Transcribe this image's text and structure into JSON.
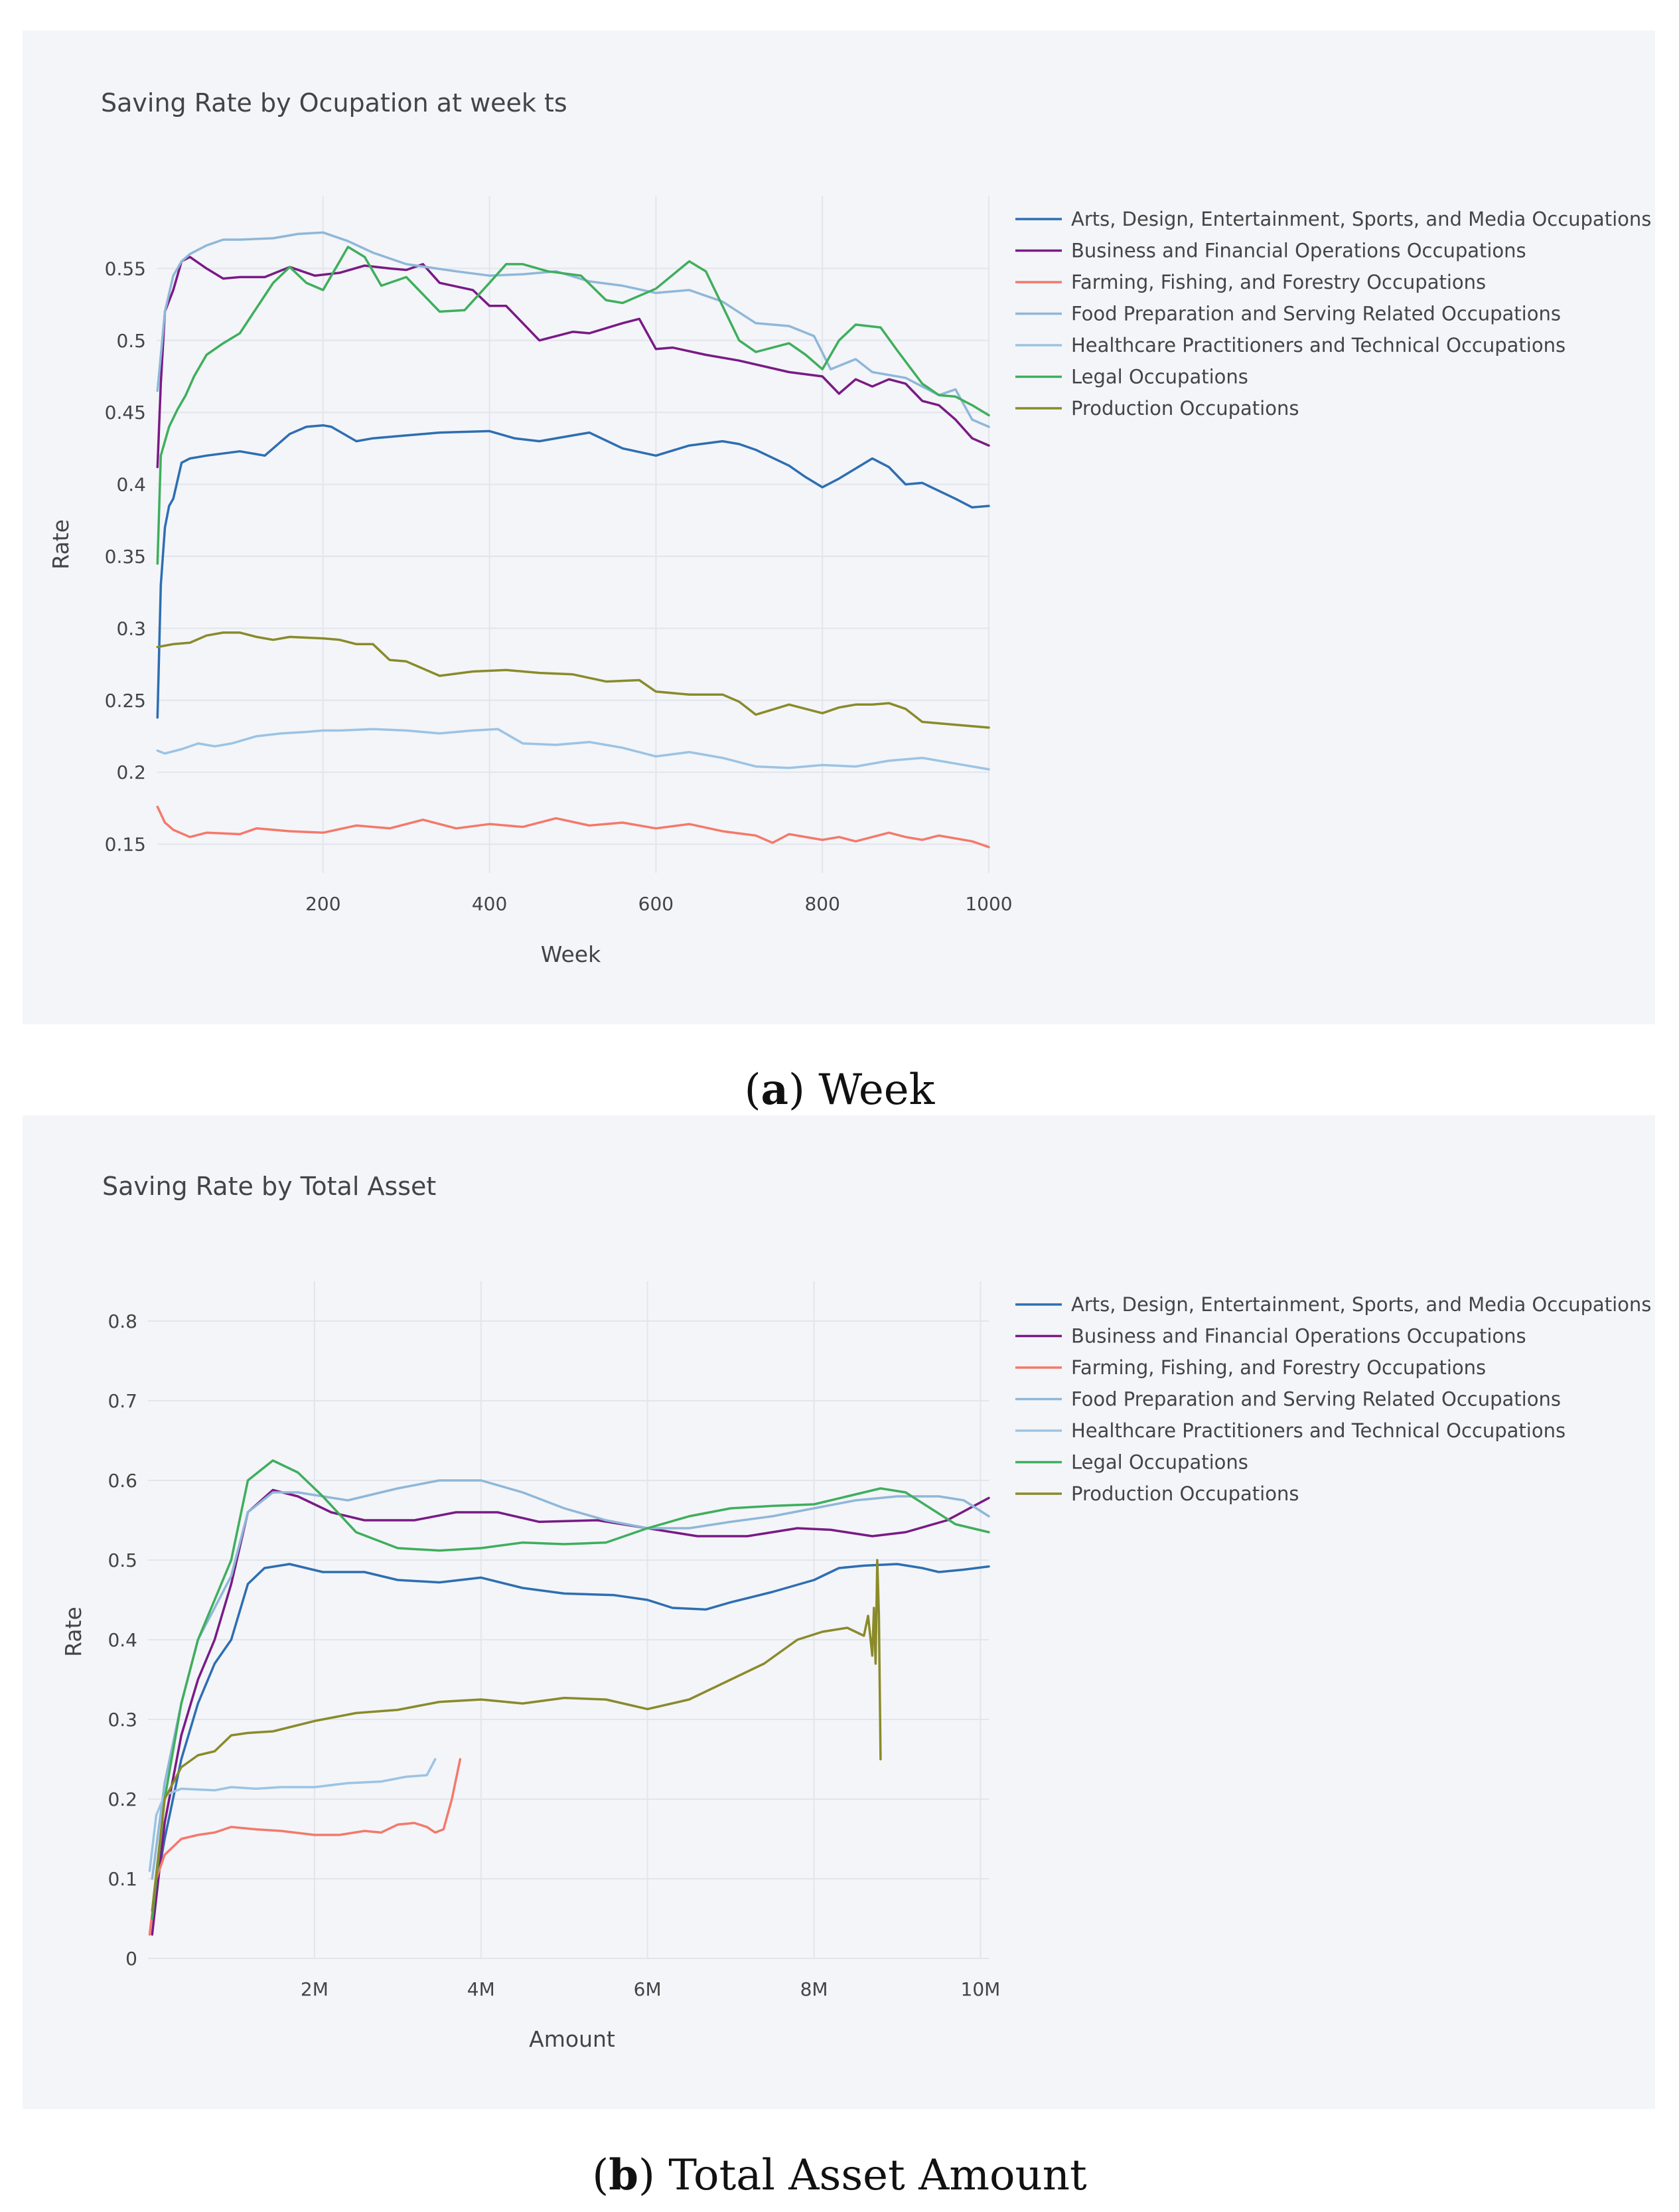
{
  "chart_data": [
    {
      "type": "line",
      "title": "Saving Rate by Ocupation at week ts",
      "xlabel": "Week",
      "ylabel": "Rate",
      "xlim": [
        0,
        1000
      ],
      "ylim": [
        0.13,
        0.6
      ],
      "xticks": [
        200,
        400,
        600,
        800,
        1000
      ],
      "xtick_labels": [
        "200",
        "400",
        "600",
        "800",
        "1000"
      ],
      "yticks": [
        0.15,
        0.2,
        0.25,
        0.3,
        0.35,
        0.4,
        0.45,
        0.5,
        0.55
      ],
      "ytick_labels": [
        "0.15",
        "0.2",
        "0.25",
        "0.3",
        "0.35",
        "0.4",
        "0.45",
        "0.5",
        "0.55"
      ],
      "legend_position": "right",
      "series": [
        {
          "name": "Arts, Design, Entertainment, Sports, and Media Occupations",
          "color": "#2e6eb1",
          "x": [
            1,
            5,
            10,
            15,
            20,
            30,
            40,
            60,
            100,
            130,
            160,
            180,
            200,
            210,
            240,
            260,
            300,
            340,
            400,
            430,
            460,
            500,
            520,
            560,
            600,
            640,
            680,
            700,
            720,
            760,
            780,
            800,
            820,
            860,
            880,
            900,
            920,
            960,
            980,
            1000
          ],
          "y": [
            0.238,
            0.33,
            0.37,
            0.385,
            0.39,
            0.415,
            0.418,
            0.42,
            0.423,
            0.42,
            0.435,
            0.44,
            0.441,
            0.44,
            0.43,
            0.432,
            0.434,
            0.436,
            0.437,
            0.432,
            0.43,
            0.434,
            0.436,
            0.425,
            0.42,
            0.427,
            0.43,
            0.428,
            0.424,
            0.413,
            0.405,
            0.398,
            0.404,
            0.418,
            0.412,
            0.4,
            0.401,
            0.39,
            0.384,
            0.385
          ]
        },
        {
          "name": "Business and Financial Operations Occupations",
          "color": "#7a1a85",
          "x": [
            1,
            5,
            10,
            20,
            30,
            40,
            60,
            80,
            100,
            130,
            160,
            190,
            220,
            250,
            280,
            300,
            320,
            340,
            380,
            400,
            420,
            440,
            460,
            500,
            520,
            560,
            580,
            600,
            620,
            660,
            700,
            760,
            800,
            820,
            840,
            860,
            880,
            900,
            920,
            940,
            960,
            980,
            1000
          ],
          "y": [
            0.412,
            0.47,
            0.52,
            0.535,
            0.555,
            0.558,
            0.55,
            0.543,
            0.544,
            0.544,
            0.551,
            0.545,
            0.547,
            0.552,
            0.55,
            0.549,
            0.553,
            0.54,
            0.535,
            0.524,
            0.524,
            0.512,
            0.5,
            0.506,
            0.505,
            0.512,
            0.515,
            0.494,
            0.495,
            0.49,
            0.486,
            0.478,
            0.475,
            0.463,
            0.473,
            0.468,
            0.473,
            0.47,
            0.458,
            0.455,
            0.445,
            0.432,
            0.427
          ]
        },
        {
          "name": "Farming, Fishing, and Forestry Occupations",
          "color": "#f4796a",
          "x": [
            1,
            10,
            20,
            40,
            60,
            100,
            120,
            160,
            200,
            240,
            280,
            320,
            360,
            400,
            440,
            480,
            520,
            560,
            600,
            640,
            680,
            720,
            740,
            760,
            800,
            820,
            840,
            880,
            900,
            920,
            940,
            980,
            1000
          ],
          "y": [
            0.176,
            0.165,
            0.16,
            0.155,
            0.158,
            0.157,
            0.161,
            0.159,
            0.158,
            0.163,
            0.161,
            0.167,
            0.161,
            0.164,
            0.162,
            0.168,
            0.163,
            0.165,
            0.161,
            0.164,
            0.159,
            0.156,
            0.151,
            0.157,
            0.153,
            0.155,
            0.152,
            0.158,
            0.155,
            0.153,
            0.156,
            0.152,
            0.148
          ]
        },
        {
          "name": "Food Preparation and Serving Related Occupations",
          "color": "#8fb7d8",
          "x": [
            1,
            10,
            20,
            30,
            40,
            60,
            80,
            100,
            140,
            170,
            200,
            230,
            260,
            300,
            360,
            400,
            440,
            480,
            520,
            560,
            600,
            640,
            680,
            720,
            760,
            790,
            810,
            840,
            860,
            900,
            940,
            960,
            980,
            1000
          ],
          "y": [
            0.465,
            0.52,
            0.545,
            0.555,
            0.56,
            0.566,
            0.57,
            0.57,
            0.571,
            0.574,
            0.575,
            0.569,
            0.561,
            0.553,
            0.548,
            0.545,
            0.546,
            0.548,
            0.541,
            0.538,
            0.533,
            0.535,
            0.527,
            0.512,
            0.51,
            0.503,
            0.48,
            0.487,
            0.478,
            0.474,
            0.462,
            0.466,
            0.445,
            0.44
          ]
        },
        {
          "name": "Healthcare Practitioners and Technical Occupations",
          "color": "#9cc3e3",
          "x": [
            1,
            10,
            30,
            50,
            70,
            90,
            120,
            150,
            180,
            200,
            220,
            260,
            300,
            340,
            380,
            410,
            440,
            480,
            520,
            560,
            600,
            640,
            680,
            720,
            760,
            800,
            840,
            880,
            920,
            960,
            1000
          ],
          "y": [
            0.215,
            0.213,
            0.216,
            0.22,
            0.218,
            0.22,
            0.225,
            0.227,
            0.228,
            0.229,
            0.229,
            0.23,
            0.229,
            0.227,
            0.229,
            0.23,
            0.22,
            0.219,
            0.221,
            0.217,
            0.211,
            0.214,
            0.21,
            0.204,
            0.203,
            0.205,
            0.204,
            0.208,
            0.21,
            0.206,
            0.202
          ]
        },
        {
          "name": "Legal Occupations",
          "color": "#3fae5c",
          "x": [
            1,
            5,
            15,
            25,
            35,
            45,
            60,
            80,
            100,
            140,
            160,
            180,
            200,
            230,
            250,
            270,
            300,
            340,
            370,
            400,
            420,
            440,
            470,
            510,
            540,
            560,
            600,
            640,
            660,
            700,
            720,
            760,
            780,
            800,
            820,
            840,
            870,
            890,
            920,
            940,
            960,
            980,
            1000
          ],
          "y": [
            0.345,
            0.42,
            0.44,
            0.452,
            0.462,
            0.475,
            0.49,
            0.498,
            0.505,
            0.54,
            0.551,
            0.54,
            0.535,
            0.565,
            0.558,
            0.538,
            0.544,
            0.52,
            0.521,
            0.54,
            0.553,
            0.553,
            0.548,
            0.545,
            0.528,
            0.526,
            0.536,
            0.555,
            0.548,
            0.5,
            0.492,
            0.498,
            0.49,
            0.48,
            0.5,
            0.511,
            0.509,
            0.493,
            0.47,
            0.462,
            0.461,
            0.455,
            0.448
          ]
        },
        {
          "name": "Production Occupations",
          "color": "#8a8a2a",
          "x": [
            1,
            20,
            40,
            60,
            80,
            100,
            120,
            140,
            160,
            200,
            220,
            240,
            260,
            280,
            300,
            340,
            380,
            420,
            460,
            500,
            540,
            580,
            600,
            640,
            680,
            700,
            720,
            760,
            800,
            820,
            840,
            860,
            880,
            900,
            920,
            960,
            1000
          ],
          "y": [
            0.287,
            0.289,
            0.29,
            0.295,
            0.297,
            0.297,
            0.294,
            0.292,
            0.294,
            0.293,
            0.292,
            0.289,
            0.289,
            0.278,
            0.277,
            0.267,
            0.27,
            0.271,
            0.269,
            0.268,
            0.263,
            0.264,
            0.256,
            0.254,
            0.254,
            0.249,
            0.24,
            0.247,
            0.241,
            0.245,
            0.247,
            0.247,
            0.248,
            0.244,
            0.235,
            0.233,
            0.231
          ]
        }
      ]
    },
    {
      "type": "line",
      "title": "Saving Rate by Total Asset",
      "xlabel": "Amount",
      "ylabel": "Rate",
      "xlim": [
        0,
        10.1
      ],
      "ylim": [
        0,
        0.85
      ],
      "xticks": [
        2,
        4,
        6,
        8,
        10
      ],
      "xtick_labels": [
        "2M",
        "4M",
        "6M",
        "8M",
        "10M"
      ],
      "yticks": [
        0,
        0.1,
        0.2,
        0.3,
        0.4,
        0.5,
        0.6,
        0.7,
        0.8
      ],
      "ytick_labels": [
        "0",
        "0.1",
        "0.2",
        "0.3",
        "0.4",
        "0.5",
        "0.6",
        "0.7",
        "0.8"
      ],
      "x_unit": "M",
      "legend_position": "right",
      "series": [
        {
          "name": "Arts, Design, Entertainment, Sports, and Media Occupations",
          "color": "#2e6eb1",
          "x": [
            0.05,
            0.2,
            0.4,
            0.6,
            0.8,
            1.0,
            1.2,
            1.4,
            1.7,
            2.1,
            2.6,
            3.0,
            3.5,
            4.0,
            4.5,
            5.0,
            5.6,
            6.0,
            6.3,
            6.7,
            7.0,
            7.5,
            8.0,
            8.3,
            8.6,
            9.0,
            9.3,
            9.5,
            9.8,
            10.1
          ],
          "y": [
            0.06,
            0.15,
            0.25,
            0.32,
            0.37,
            0.4,
            0.47,
            0.49,
            0.495,
            0.485,
            0.485,
            0.475,
            0.472,
            0.478,
            0.465,
            0.458,
            0.456,
            0.45,
            0.44,
            0.438,
            0.447,
            0.46,
            0.475,
            0.49,
            0.493,
            0.495,
            0.49,
            0.485,
            0.488,
            0.492
          ]
        },
        {
          "name": "Business and Financial Operations Occupations",
          "color": "#7a1a85",
          "x": [
            0.05,
            0.2,
            0.4,
            0.6,
            0.8,
            1.0,
            1.2,
            1.5,
            1.8,
            2.2,
            2.6,
            3.2,
            3.7,
            4.2,
            4.7,
            5.4,
            6.0,
            6.6,
            7.2,
            7.8,
            8.2,
            8.7,
            9.1,
            9.6,
            10.1
          ],
          "y": [
            0.03,
            0.17,
            0.28,
            0.35,
            0.4,
            0.47,
            0.56,
            0.588,
            0.58,
            0.56,
            0.55,
            0.55,
            0.56,
            0.56,
            0.548,
            0.55,
            0.54,
            0.53,
            0.53,
            0.54,
            0.538,
            0.53,
            0.535,
            0.55,
            0.578
          ]
        },
        {
          "name": "Farming, Fishing, and Forestry Occupations",
          "color": "#f4796a",
          "x": [
            0.02,
            0.1,
            0.2,
            0.4,
            0.6,
            0.8,
            1.0,
            1.3,
            1.6,
            2.0,
            2.3,
            2.6,
            2.8,
            3.0,
            3.2,
            3.35,
            3.45,
            3.55,
            3.65,
            3.75
          ],
          "y": [
            0.03,
            0.1,
            0.13,
            0.15,
            0.155,
            0.158,
            0.165,
            0.162,
            0.16,
            0.155,
            0.155,
            0.16,
            0.158,
            0.168,
            0.17,
            0.165,
            0.158,
            0.162,
            0.2,
            0.25
          ]
        },
        {
          "name": "Food Preparation and Serving Related Occupations",
          "color": "#8fb7d8",
          "x": [
            0.05,
            0.2,
            0.4,
            0.6,
            0.8,
            1.0,
            1.2,
            1.5,
            1.8,
            2.1,
            2.4,
            3.0,
            3.5,
            4.0,
            4.5,
            5.0,
            5.5,
            6.0,
            6.5,
            7.0,
            7.5,
            8.0,
            8.5,
            9.0,
            9.5,
            9.8,
            10.1
          ],
          "y": [
            0.1,
            0.22,
            0.32,
            0.4,
            0.44,
            0.48,
            0.56,
            0.585,
            0.585,
            0.58,
            0.575,
            0.59,
            0.6,
            0.6,
            0.585,
            0.565,
            0.55,
            0.54,
            0.54,
            0.548,
            0.555,
            0.565,
            0.575,
            0.58,
            0.58,
            0.575,
            0.555
          ]
        },
        {
          "name": "Healthcare Practitioners and Technical Occupations",
          "color": "#9cc3e3",
          "x": [
            0.02,
            0.1,
            0.2,
            0.4,
            0.6,
            0.8,
            1.0,
            1.3,
            1.6,
            2.0,
            2.4,
            2.8,
            3.1,
            3.35,
            3.45
          ],
          "y": [
            0.11,
            0.18,
            0.205,
            0.213,
            0.212,
            0.211,
            0.215,
            0.213,
            0.215,
            0.215,
            0.22,
            0.222,
            0.228,
            0.23,
            0.25
          ]
        },
        {
          "name": "Legal Occupations",
          "color": "#3fae5c",
          "x": [
            0.05,
            0.2,
            0.4,
            0.6,
            0.8,
            1.0,
            1.2,
            1.5,
            1.8,
            2.1,
            2.5,
            3.0,
            3.5,
            4.0,
            4.5,
            5.0,
            5.5,
            6.0,
            6.5,
            7.0,
            7.5,
            8.0,
            8.4,
            8.8,
            9.1,
            9.4,
            9.7,
            10.1
          ],
          "y": [
            0.05,
            0.2,
            0.32,
            0.4,
            0.45,
            0.5,
            0.6,
            0.625,
            0.61,
            0.58,
            0.535,
            0.515,
            0.512,
            0.515,
            0.522,
            0.52,
            0.522,
            0.54,
            0.555,
            0.565,
            0.568,
            0.57,
            0.58,
            0.59,
            0.585,
            0.565,
            0.545,
            0.535
          ]
        },
        {
          "name": "Production Occupations",
          "color": "#8a8a2a",
          "x": [
            0.05,
            0.2,
            0.4,
            0.6,
            0.8,
            1.0,
            1.2,
            1.5,
            2.0,
            2.5,
            3.0,
            3.5,
            4.0,
            4.5,
            5.0,
            5.5,
            6.0,
            6.5,
            7.0,
            7.4,
            7.8,
            8.1,
            8.4,
            8.6,
            8.65,
            8.7,
            8.72,
            8.74,
            8.76,
            8.78,
            8.8
          ],
          "y": [
            0.06,
            0.2,
            0.24,
            0.255,
            0.26,
            0.28,
            0.283,
            0.285,
            0.298,
            0.308,
            0.312,
            0.322,
            0.325,
            0.32,
            0.327,
            0.325,
            0.313,
            0.325,
            0.35,
            0.37,
            0.4,
            0.41,
            0.415,
            0.405,
            0.43,
            0.38,
            0.44,
            0.37,
            0.5,
            0.43,
            0.25
          ]
        }
      ]
    }
  ],
  "captions": {
    "a": {
      "label": "a",
      "open": "(",
      "close": ")",
      "text": " Week"
    },
    "b": {
      "label": "b",
      "open": "(",
      "close": ")",
      "text": " Total Asset Amount"
    }
  },
  "colors": {
    "plot_bg": "#f3f5f9",
    "grid": "#e2e5eb"
  }
}
